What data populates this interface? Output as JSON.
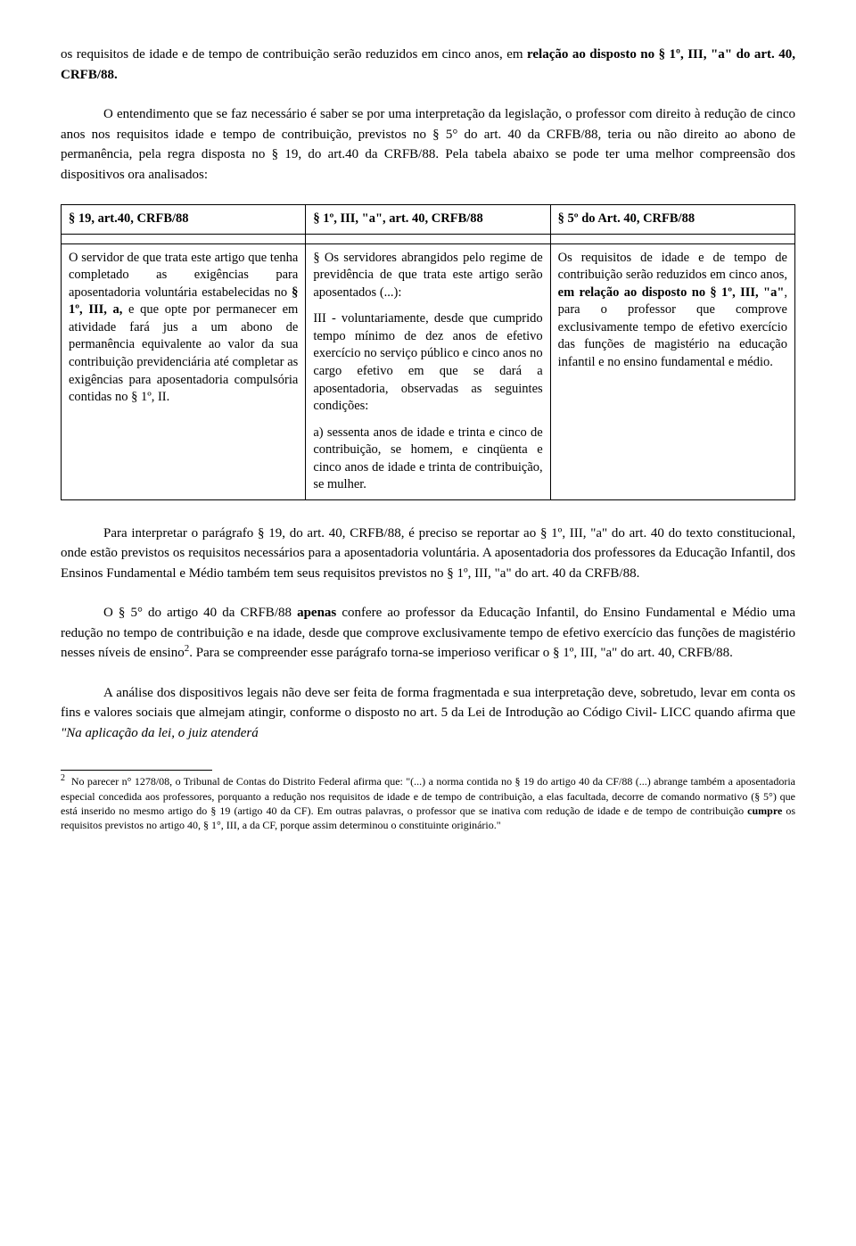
{
  "p1_a": "os requisitos de idade e de tempo de contribuição serão reduzidos em cinco anos, em ",
  "p1_b": "relação ao disposto no § 1º, III, \"a\" do art. 40, CRFB/88.",
  "p2": "O entendimento que se faz necessário é saber se por uma interpretação da legislação, o professor com direito à redução de cinco anos nos requisitos idade e tempo de contribuição, previstos no § 5° do art. 40 da CRFB/88, teria ou não direito ao abono de permanência, pela regra disposta no § 19, do art.40 da CRFB/88. Pela tabela abaixo se pode ter uma melhor compreensão dos dispositivos ora analisados:",
  "table": {
    "h1": "§ 19, art.40, CRFB/88",
    "h2": "§ 1º, III, \"a\", art. 40, CRFB/88",
    "h3": "§ 5º do Art. 40, CRFB/88",
    "c1_a": "O servidor de que trata este artigo que tenha completado as exigências para aposentadoria voluntária estabelecidas no ",
    "c1_b": "§ 1º, III, a,",
    "c1_c": " e que opte por permanecer em atividade fará jus a um abono de permanência equivalente ao valor da sua contribuição previdenciária até completar as exigências para aposentadoria compulsória contidas no § 1º, II.",
    "c2_p1": "§ Os servidores abrangidos pelo regime de previdência de que trata este artigo serão aposentados (...):",
    "c2_p2": "III - voluntariamente, desde que cumprido tempo mínimo de dez anos de efetivo exercício no serviço público e cinco anos no cargo efetivo em que se dará a aposentadoria, observadas as seguintes condições:",
    "c2_p3": "a) sessenta anos de idade e trinta e cinco de contribuição, se homem, e cinqüenta e cinco anos de idade e trinta de contribuição, se mulher.",
    "c3_a": "Os requisitos de idade e de tempo de contribuição serão reduzidos em cinco anos, ",
    "c3_b": "em relação ao disposto no § 1º, III, \"a\"",
    "c3_c": ", para o professor que comprove exclusivamente tempo de efetivo exercício das funções de magistério na educação infantil e no ensino fundamental e médio."
  },
  "p3": "Para interpretar o parágrafo § 19, do art. 40, CRFB/88, é preciso se reportar ao § 1º, III, \"a\" do art. 40 do texto constitucional, onde estão previstos os requisitos necessários para a aposentadoria voluntária. A aposentadoria dos professores da Educação Infantil, dos Ensinos Fundamental e Médio também tem seus requisitos previstos no § 1º, III, \"a\" do art. 40 da CRFB/88.",
  "p4_a": "O § 5° do artigo 40 da CRFB/88 ",
  "p4_b": "apenas",
  "p4_c": " confere ao professor da Educação Infantil, do Ensino Fundamental e Médio uma redução no tempo de contribuição e na idade, desde que comprove exclusivamente tempo de efetivo exercício das funções de magistério nesses níveis de ensino",
  "p4_d": ". Para se compreender esse parágrafo torna-se imperioso verificar o § 1º, III, \"a\" do art. 40, CRFB/88.",
  "p5_a": "A análise dos dispositivos legais não deve ser feita de forma fragmentada e sua interpretação deve, sobretudo, levar em conta os fins e valores sociais que almejam atingir, conforme o disposto no art. 5 da Lei de Introdução ao Código Civil- LICC quando afirma que ",
  "p5_b": "\"Na aplicação da lei, o juiz atenderá",
  "footnote": {
    "num": "2",
    "a": "No parecer n° 1278/08, o Tribunal de Contas do Distrito Federal afirma que: \"(...) a norma contida no § 19 do artigo 40 da CF/88 (...) abrange também a aposentadoria especial concedida aos professores, porquanto a redução nos requisitos de idade e de tempo de contribuição, a elas facultada, decorre de comando normativo (§ 5°) que está inserido no mesmo artigo do § 19 (artigo 40 da CF). Em outras palavras, o professor que se inativa com redução de idade e de tempo de contribuição ",
    "b": "cumpre",
    "c": " os requisitos previstos no artigo 40, § 1°, III, a da CF, porque assim determinou o constituinte originário.\""
  }
}
